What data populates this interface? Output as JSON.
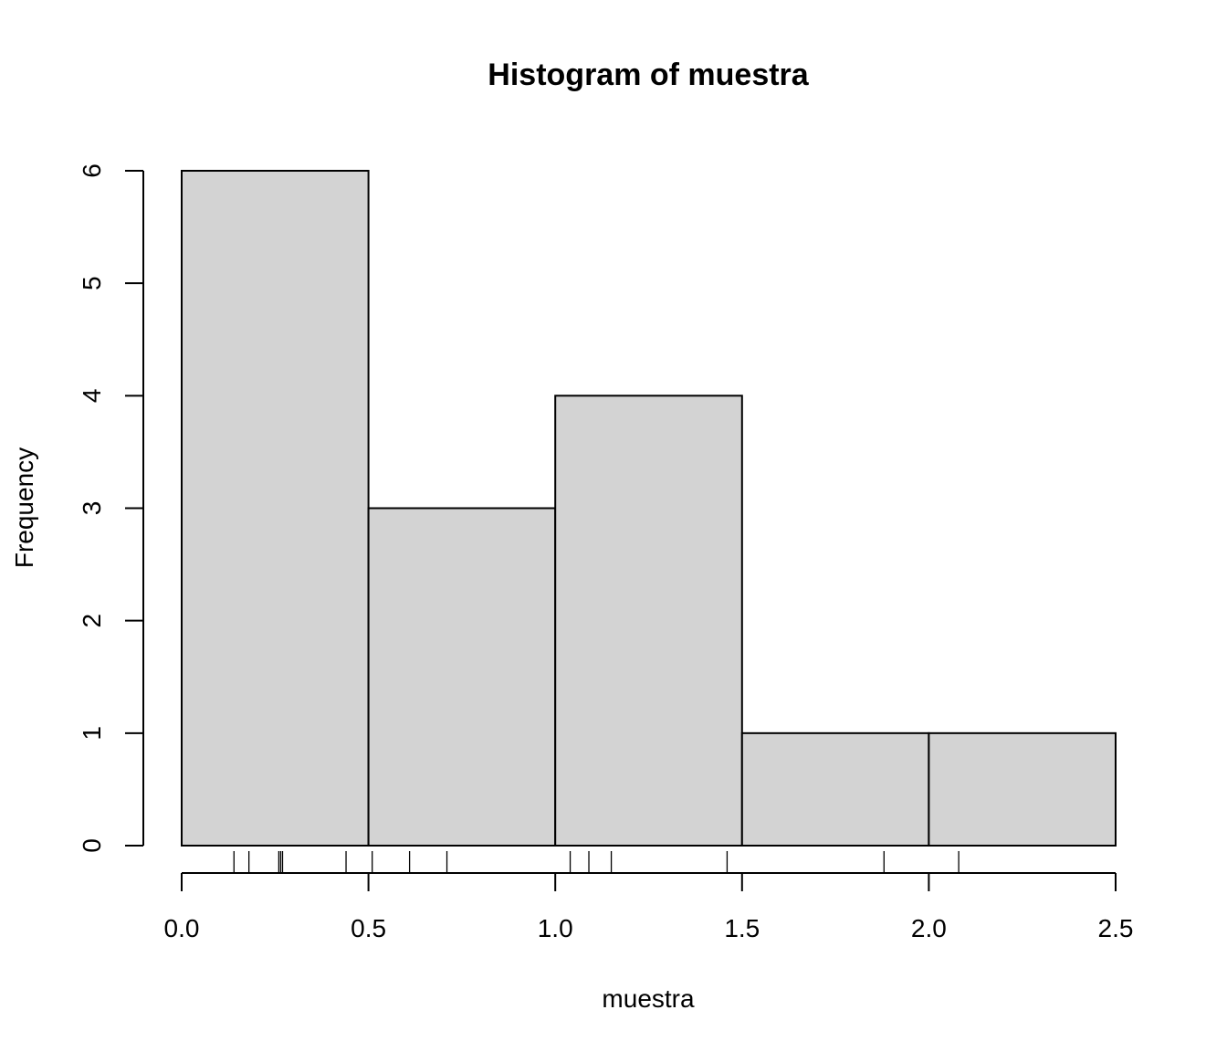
{
  "chart_data": {
    "type": "bar",
    "title": "Histogram of muestra",
    "xlabel": "muestra",
    "ylabel": "Frequency",
    "bins": [
      {
        "from": 0.0,
        "to": 0.5,
        "count": 6
      },
      {
        "from": 0.5,
        "to": 1.0,
        "count": 3
      },
      {
        "from": 1.0,
        "to": 1.5,
        "count": 4
      },
      {
        "from": 1.5,
        "to": 2.0,
        "count": 1
      },
      {
        "from": 2.0,
        "to": 2.5,
        "count": 1
      }
    ],
    "xlim": [
      0,
      2.5
    ],
    "ylim": [
      0,
      6
    ],
    "x_ticks": [
      0.0,
      0.5,
      1.0,
      1.5,
      2.0,
      2.5
    ],
    "x_tick_labels": [
      "0.0",
      "0.5",
      "1.0",
      "1.5",
      "2.0",
      "2.5"
    ],
    "y_ticks": [
      0,
      1,
      2,
      3,
      4,
      5,
      6
    ],
    "y_tick_labels": [
      "0",
      "1",
      "2",
      "3",
      "4",
      "5",
      "6"
    ],
    "rug_values": [
      0.14,
      0.18,
      0.26,
      0.265,
      0.27,
      0.44,
      0.51,
      0.61,
      0.71,
      1.04,
      1.09,
      1.15,
      1.46,
      1.88,
      2.08
    ],
    "bar_color": "#d3d3d3",
    "grid": false,
    "legend": "none"
  }
}
